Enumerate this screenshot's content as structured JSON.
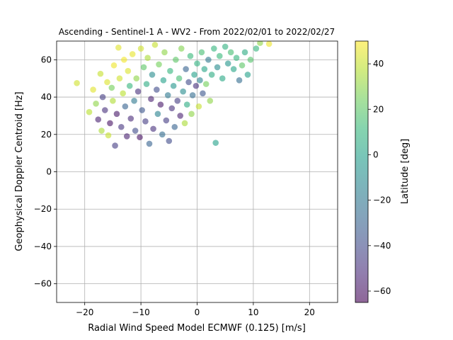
{
  "chart_data": {
    "type": "scatter",
    "title": "Ascending - Sentinel-1 A - WV2 - From 2022/02/01 to 2022/02/27",
    "xlabel": "Radial Wind Speed Model ECMWF (0.125) [m/s]",
    "ylabel": "Geophysical Doppler Centroid [Hz]",
    "xlim": [
      -25,
      25
    ],
    "ylim": [
      -70,
      70
    ],
    "xticks": [
      -20,
      -10,
      0,
      10,
      20
    ],
    "yticks": [
      -60,
      -40,
      -20,
      0,
      20,
      40,
      60
    ],
    "grid": true,
    "point_alpha": 0.6,
    "colormap": "viridis",
    "colorbar": {
      "label": "Latitude [deg]",
      "range": [
        -65,
        50
      ],
      "ticks": [
        -60,
        -40,
        -20,
        0,
        20,
        40
      ]
    },
    "series": [
      {
        "color_by": "latitude",
        "points": [
          {
            "x": -21.4,
            "y": 47.5,
            "c": 42
          },
          {
            "x": -19.2,
            "y": 32.0,
            "c": 38
          },
          {
            "x": -18.5,
            "y": 44.0,
            "c": 45
          },
          {
            "x": -18.0,
            "y": 36.5,
            "c": 30
          },
          {
            "x": -17.6,
            "y": 28.0,
            "c": -55
          },
          {
            "x": -17.2,
            "y": 52.5,
            "c": 40
          },
          {
            "x": -17.0,
            "y": 22.0,
            "c": 35
          },
          {
            "x": -16.8,
            "y": 40.0,
            "c": -45
          },
          {
            "x": -16.4,
            "y": 33.0,
            "c": -50
          },
          {
            "x": -16.0,
            "y": 48.0,
            "c": 44
          },
          {
            "x": -15.8,
            "y": 19.5,
            "c": 40
          },
          {
            "x": -15.5,
            "y": 26.0,
            "c": -60
          },
          {
            "x": -15.2,
            "y": 45.0,
            "c": 25
          },
          {
            "x": -15.0,
            "y": 38.0,
            "c": 36
          },
          {
            "x": -14.8,
            "y": 57.0,
            "c": 47
          },
          {
            "x": -14.6,
            "y": 14.0,
            "c": -45
          },
          {
            "x": -14.3,
            "y": 31.0,
            "c": -58
          },
          {
            "x": -14.0,
            "y": 66.5,
            "c": 45
          },
          {
            "x": -13.8,
            "y": 50.0,
            "c": 42
          },
          {
            "x": -13.5,
            "y": 24.0,
            "c": -48
          },
          {
            "x": -13.2,
            "y": 42.0,
            "c": 38
          },
          {
            "x": -13.0,
            "y": 60.0,
            "c": 48
          },
          {
            "x": -12.8,
            "y": 35.0,
            "c": -30
          },
          {
            "x": -12.5,
            "y": 19.0,
            "c": -55
          },
          {
            "x": -12.3,
            "y": 54.0,
            "c": 44
          },
          {
            "x": -12.0,
            "y": 46.0,
            "c": 10
          },
          {
            "x": -11.8,
            "y": 28.5,
            "c": -52
          },
          {
            "x": -11.5,
            "y": 63.0,
            "c": 46
          },
          {
            "x": -11.2,
            "y": 38.0,
            "c": -20
          },
          {
            "x": -11.0,
            "y": 22.0,
            "c": -40
          },
          {
            "x": -10.8,
            "y": 50.0,
            "c": 30
          },
          {
            "x": -10.5,
            "y": 43.0,
            "c": -50
          },
          {
            "x": -10.2,
            "y": 18.5,
            "c": -60
          },
          {
            "x": -10.0,
            "y": 66.0,
            "c": 42
          },
          {
            "x": -9.8,
            "y": 33.0,
            "c": -35
          },
          {
            "x": -9.5,
            "y": 56.0,
            "c": 20
          },
          {
            "x": -9.2,
            "y": 27.0,
            "c": -45
          },
          {
            "x": -9.0,
            "y": 47.0,
            "c": 5
          },
          {
            "x": -8.8,
            "y": 61.0,
            "c": 35
          },
          {
            "x": -8.5,
            "y": 15.0,
            "c": -30
          },
          {
            "x": -8.2,
            "y": 39.0,
            "c": -55
          },
          {
            "x": -8.0,
            "y": 52.0,
            "c": -10
          },
          {
            "x": -7.8,
            "y": 23.0,
            "c": -50
          },
          {
            "x": -7.5,
            "y": 68.0,
            "c": 40
          },
          {
            "x": -7.2,
            "y": 44.0,
            "c": -40
          },
          {
            "x": -7.0,
            "y": 31.0,
            "c": -15
          },
          {
            "x": -6.8,
            "y": 57.5,
            "c": 25
          },
          {
            "x": -6.5,
            "y": 36.0,
            "c": -58
          },
          {
            "x": -6.2,
            "y": 20.0,
            "c": -25
          },
          {
            "x": -6.0,
            "y": 49.0,
            "c": 0
          },
          {
            "x": -5.8,
            "y": 64.0,
            "c": 30
          },
          {
            "x": -5.5,
            "y": 27.5,
            "c": -45
          },
          {
            "x": -5.2,
            "y": 41.0,
            "c": -20
          },
          {
            "x": -5.0,
            "y": 16.5,
            "c": -40
          },
          {
            "x": -4.8,
            "y": 54.0,
            "c": 10
          },
          {
            "x": -4.5,
            "y": 34.0,
            "c": -50
          },
          {
            "x": -4.2,
            "y": 46.0,
            "c": -5
          },
          {
            "x": -4.0,
            "y": 24.0,
            "c": -30
          },
          {
            "x": -3.8,
            "y": 60.0,
            "c": 20
          },
          {
            "x": -3.5,
            "y": 38.0,
            "c": -45
          },
          {
            "x": -3.2,
            "y": 50.0,
            "c": 15
          },
          {
            "x": -3.0,
            "y": 30.0,
            "c": -55
          },
          {
            "x": -2.8,
            "y": 66.0,
            "c": 28
          },
          {
            "x": -2.5,
            "y": 43.0,
            "c": -10
          },
          {
            "x": -2.2,
            "y": 26.0,
            "c": 35
          },
          {
            "x": -2.0,
            "y": 55.0,
            "c": -30
          },
          {
            "x": -1.8,
            "y": 36.0,
            "c": 5
          },
          {
            "x": -1.5,
            "y": 48.0,
            "c": -40
          },
          {
            "x": -1.2,
            "y": 62.0,
            "c": 12
          },
          {
            "x": -1.0,
            "y": 31.0,
            "c": 30
          },
          {
            "x": -0.8,
            "y": 41.0,
            "c": -25
          },
          {
            "x": -0.5,
            "y": 52.0,
            "c": 0
          },
          {
            "x": -0.2,
            "y": 46.0,
            "c": -50
          },
          {
            "x": 0.0,
            "y": 58.0,
            "c": 8
          },
          {
            "x": 0.3,
            "y": 35.0,
            "c": 40
          },
          {
            "x": 0.5,
            "y": 49.0,
            "c": -15
          },
          {
            "x": 0.8,
            "y": 64.0,
            "c": 15
          },
          {
            "x": 1.0,
            "y": 42.0,
            "c": -35
          },
          {
            "x": 1.3,
            "y": 55.0,
            "c": 2
          },
          {
            "x": 1.6,
            "y": 47.0,
            "c": 25
          },
          {
            "x": 2.0,
            "y": 60.0,
            "c": -20
          },
          {
            "x": 2.3,
            "y": 38.0,
            "c": 30
          },
          {
            "x": 2.6,
            "y": 52.0,
            "c": 5
          },
          {
            "x": 3.0,
            "y": 66.0,
            "c": 10
          },
          {
            "x": 3.3,
            "y": 15.5,
            "c": 0
          },
          {
            "x": 3.6,
            "y": 56.0,
            "c": -10
          },
          {
            "x": 4.0,
            "y": 62.0,
            "c": 12
          },
          {
            "x": 4.5,
            "y": 50.0,
            "c": 3
          },
          {
            "x": 5.0,
            "y": 67.0,
            "c": 8
          },
          {
            "x": 5.5,
            "y": 58.0,
            "c": -5
          },
          {
            "x": 6.0,
            "y": 64.0,
            "c": 15
          },
          {
            "x": 6.5,
            "y": 55.0,
            "c": 2
          },
          {
            "x": 7.0,
            "y": 61.0,
            "c": 10
          },
          {
            "x": 7.5,
            "y": 49.0,
            "c": -25
          },
          {
            "x": 8.0,
            "y": 57.0,
            "c": 20
          },
          {
            "x": 8.5,
            "y": 64.0,
            "c": 5
          },
          {
            "x": 9.0,
            "y": 52.0,
            "c": 0
          },
          {
            "x": 9.5,
            "y": 60.0,
            "c": 18
          },
          {
            "x": 10.5,
            "y": 66.0,
            "c": 10
          },
          {
            "x": 11.2,
            "y": 69.0,
            "c": 30
          },
          {
            "x": 12.8,
            "y": 68.5,
            "c": 47
          }
        ]
      }
    ]
  }
}
